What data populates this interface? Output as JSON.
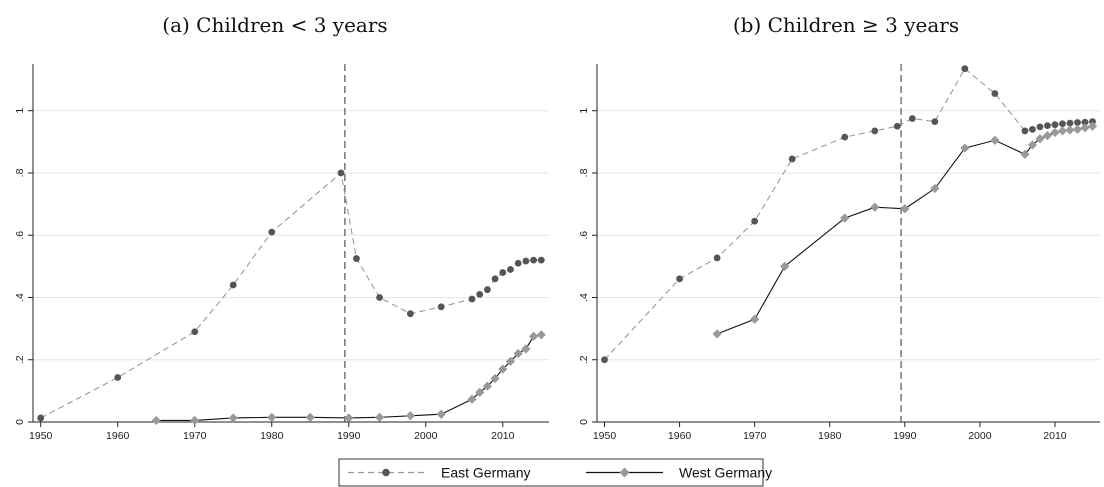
{
  "chart_data": [
    {
      "type": "line",
      "title": "(a) Children < 3 years",
      "xlim": [
        1949,
        2016
      ],
      "ylim": [
        0,
        1.15
      ],
      "xticks": [
        1950,
        1960,
        1970,
        1980,
        1990,
        2000,
        2010
      ],
      "xtick_labels": [
        "1950",
        "1960",
        "1970",
        "1980",
        "1990",
        "2000",
        "2010"
      ],
      "yticks": [
        0,
        0.2,
        0.4,
        0.6,
        0.8,
        1.0
      ],
      "ytick_labels": [
        "0",
        ".2",
        ".4",
        ".6",
        ".8",
        "1"
      ],
      "vline_x": 1989.5,
      "series": [
        {
          "name": "East Germany",
          "x": [
            1950,
            1960,
            1970,
            1975,
            1980,
            1989,
            1991,
            1994,
            1998,
            2002,
            2006,
            2007,
            2008,
            2009,
            2010,
            2011,
            2012,
            2013,
            2014,
            2015
          ],
          "y": [
            0.013,
            0.143,
            0.29,
            0.44,
            0.61,
            0.8,
            0.525,
            0.4,
            0.348,
            0.37,
            0.395,
            0.41,
            0.425,
            0.46,
            0.48,
            0.49,
            0.51,
            0.517,
            0.52,
            0.52
          ]
        },
        {
          "name": "West Germany",
          "x": [
            1965,
            1970,
            1975,
            1980,
            1985,
            1990,
            1994,
            1998,
            2002,
            2006,
            2007,
            2008,
            2009,
            2010,
            2011,
            2012,
            2013,
            2014,
            2015
          ],
          "y": [
            0.005,
            0.005,
            0.013,
            0.015,
            0.015,
            0.013,
            0.015,
            0.02,
            0.025,
            0.073,
            0.095,
            0.115,
            0.14,
            0.17,
            0.195,
            0.22,
            0.235,
            0.275,
            0.28
          ]
        }
      ]
    },
    {
      "type": "line",
      "title": "(b) Children ≥ 3 years",
      "xlim": [
        1949,
        2016
      ],
      "ylim": [
        0,
        1.15
      ],
      "xticks": [
        1950,
        1960,
        1970,
        1980,
        1990,
        2000,
        2010
      ],
      "xtick_labels": [
        "1950",
        "1960",
        "1970",
        "1980",
        "1990",
        "2000",
        "2010"
      ],
      "yticks": [
        0,
        0.2,
        0.4,
        0.6,
        0.8,
        1.0
      ],
      "ytick_labels": [
        "0",
        ".2",
        ".4",
        ".6",
        ".8",
        "1"
      ],
      "vline_x": 1989.5,
      "series": [
        {
          "name": "East Germany",
          "x": [
            1950,
            1960,
            1965,
            1970,
            1975,
            1982,
            1986,
            1989,
            1991,
            1994,
            1998,
            2002,
            2006,
            2007,
            2008,
            2009,
            2010,
            2011,
            2012,
            2013,
            2014,
            2015
          ],
          "y": [
            0.2,
            0.46,
            0.527,
            0.645,
            0.845,
            0.915,
            0.935,
            0.95,
            0.975,
            0.965,
            1.135,
            1.055,
            0.935,
            0.94,
            0.948,
            0.952,
            0.955,
            0.958,
            0.96,
            0.962,
            0.963,
            0.965
          ]
        },
        {
          "name": "West Germany",
          "x": [
            1965,
            1970,
            1974,
            1982,
            1986,
            1990,
            1994,
            1998,
            2002,
            2006,
            2007,
            2008,
            2009,
            2010,
            2011,
            2012,
            2013,
            2014,
            2015
          ],
          "y": [
            0.283,
            0.33,
            0.5,
            0.655,
            0.69,
            0.685,
            0.75,
            0.88,
            0.905,
            0.86,
            0.89,
            0.91,
            0.92,
            0.93,
            0.935,
            0.938,
            0.94,
            0.945,
            0.95
          ]
        }
      ]
    }
  ],
  "legend": [
    {
      "label": "East Germany",
      "style": "dashed",
      "marker": "circle",
      "color": "#555555"
    },
    {
      "label": "West Germany",
      "style": "solid",
      "marker": "diamond",
      "color": "#999999"
    }
  ],
  "colors": {
    "east_marker": "#555555",
    "east_line": "#999999",
    "west_marker": "#999999",
    "west_line": "#111111",
    "grid": "#e6e6e6",
    "axis": "#222222"
  }
}
